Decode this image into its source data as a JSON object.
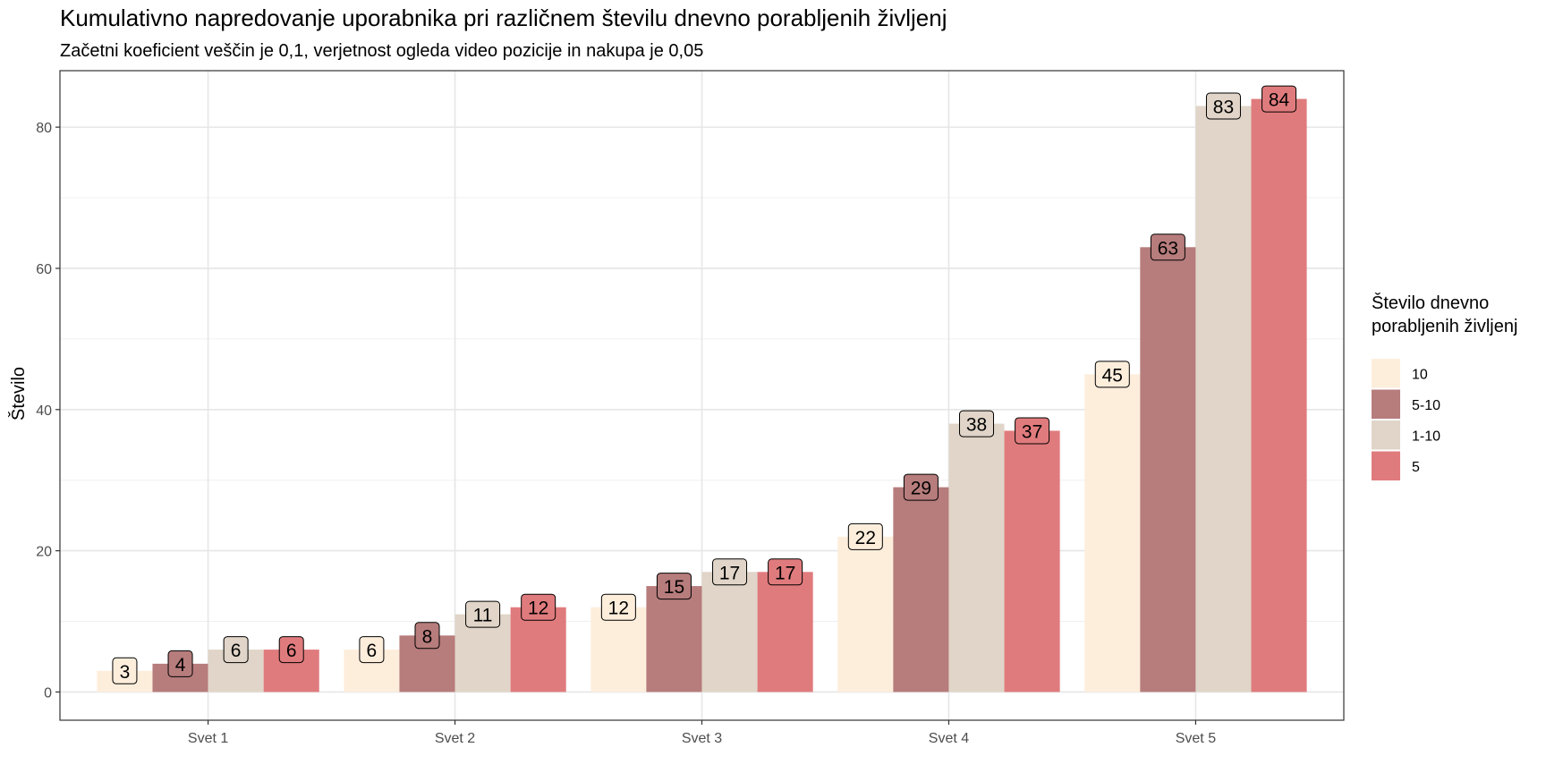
{
  "chart_data": {
    "type": "bar",
    "title": "Kumulativno napredovanje uporabnika pri različnem številu dnevno porabljenih življenj",
    "subtitle": "Začetni koeficient veščin je 0,1, verjetnost ogleda video pozicije in nakupa je 0,05",
    "xlabel": "",
    "ylabel": "Število",
    "categories": [
      "Svet 1",
      "Svet 2",
      "Svet 3",
      "Svet 4",
      "Svet 5"
    ],
    "yticks": [
      "0",
      "20",
      "40",
      "60",
      "80"
    ],
    "ylim": [
      -4,
      88
    ],
    "grid": true,
    "legend": {
      "title_lines": [
        "Število dnevno",
        "porabljenih življenj"
      ],
      "placement": "right"
    },
    "series": [
      {
        "name": "10",
        "color": "#FDEEDC",
        "values": [
          3,
          6,
          12,
          22,
          45
        ]
      },
      {
        "name": "5-10",
        "color": "#B77C7C",
        "values": [
          4,
          8,
          15,
          29,
          63
        ]
      },
      {
        "name": "1-10",
        "color": "#E0D5C8",
        "values": [
          6,
          11,
          17,
          38,
          83
        ]
      },
      {
        "name": "5",
        "color": "#E07B7D",
        "values": [
          6,
          12,
          17,
          37,
          84
        ]
      }
    ]
  }
}
